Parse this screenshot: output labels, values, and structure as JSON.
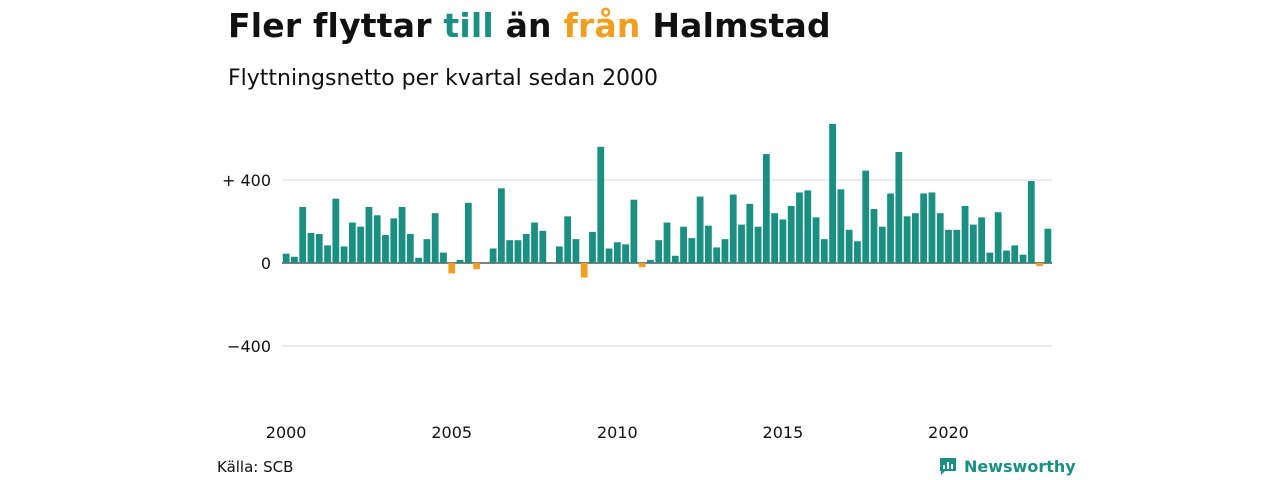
{
  "header": {
    "title_parts": [
      {
        "text": "Fler flyttar ",
        "color": "#111111"
      },
      {
        "text": "till",
        "color": "#1a8f82"
      },
      {
        "text": " än ",
        "color": "#111111"
      },
      {
        "text": "från",
        "color": "#f0a020"
      },
      {
        "text": " Halmstad",
        "color": "#111111"
      }
    ],
    "subtitle": "Flyttningsnetto per kvartal sedan 2000"
  },
  "footer": {
    "source": "Källa: SCB",
    "brand": "Newsworthy",
    "brand_icon": "newsworthy-logo-icon"
  },
  "colors": {
    "positive": "#1a8f82",
    "negative": "#f0a020",
    "grid": "#d9d9d9",
    "zero_line": "#333333"
  },
  "chart_data": {
    "type": "bar",
    "title": "Fler flyttar till än från Halmstad",
    "subtitle": "Flyttningsnetto per kvartal sedan 2000",
    "xlabel": "",
    "ylabel": "",
    "x_start": "2000 Q1",
    "frequency": "quarterly",
    "x_ticks": [
      "2000",
      "2005",
      "2010",
      "2015",
      "2020"
    ],
    "y_ticks": [
      {
        "value": 400,
        "label": "+ 400"
      },
      {
        "value": 0,
        "label": "0"
      },
      {
        "value": -400,
        "label": "−400"
      }
    ],
    "ylim": [
      -560,
      690
    ],
    "grid": true,
    "values": [
      45,
      30,
      270,
      145,
      140,
      85,
      310,
      80,
      195,
      175,
      270,
      230,
      135,
      215,
      270,
      140,
      25,
      115,
      240,
      50,
      -50,
      15,
      290,
      -30,
      0,
      70,
      360,
      110,
      110,
      140,
      195,
      155,
      0,
      80,
      225,
      115,
      -70,
      150,
      560,
      70,
      100,
      90,
      305,
      -20,
      15,
      110,
      195,
      35,
      175,
      120,
      320,
      180,
      75,
      115,
      330,
      185,
      285,
      175,
      525,
      240,
      210,
      275,
      340,
      350,
      220,
      115,
      670,
      355,
      160,
      105,
      445,
      260,
      175,
      335,
      535,
      225,
      240,
      335,
      340,
      240,
      160,
      160,
      275,
      185,
      220,
      50,
      245,
      60,
      85,
      40,
      395,
      -15,
      165
    ]
  }
}
